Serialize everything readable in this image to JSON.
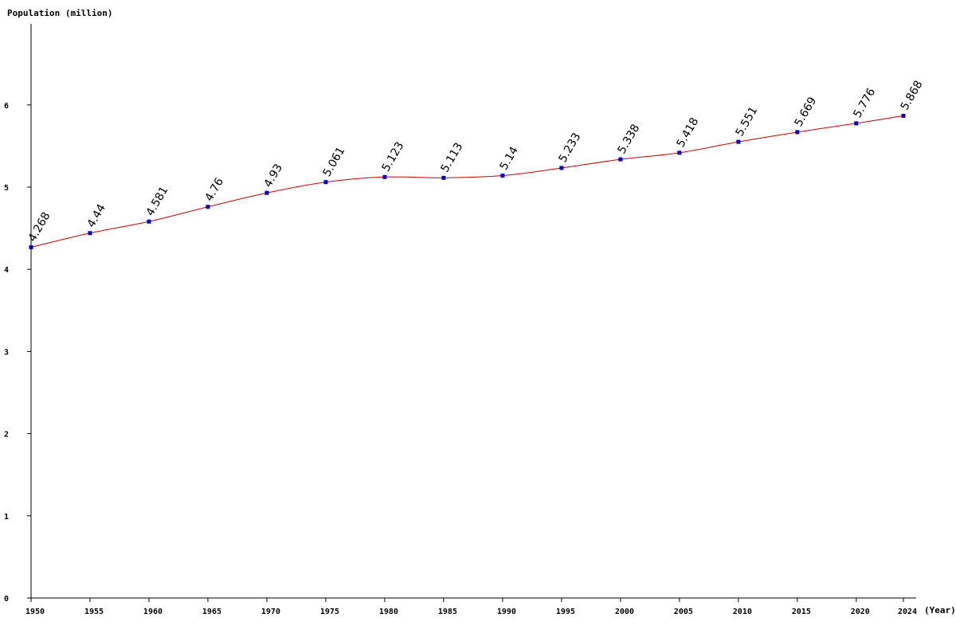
{
  "chart_data": {
    "type": "line",
    "title": "",
    "ylabel": "Population (million)",
    "xlabel": "(Year)",
    "x": [
      1950,
      1955,
      1960,
      1965,
      1970,
      1975,
      1980,
      1985,
      1990,
      1995,
      2000,
      2005,
      2010,
      2015,
      2020,
      2024
    ],
    "values": [
      4.268,
      4.44,
      4.581,
      4.76,
      4.93,
      5.061,
      5.123,
      5.113,
      5.14,
      5.233,
      5.338,
      5.418,
      5.551,
      5.669,
      5.776,
      5.868
    ],
    "data_labels": [
      "4.268",
      "4.44",
      "4.581",
      "4.76",
      "4.93",
      "5.061",
      "5.123",
      "5.113",
      "5.14",
      "5.233",
      "5.338",
      "5.418",
      "5.551",
      "5.669",
      "5.776",
      "5.868"
    ],
    "x_ticks": [
      "1950",
      "1955",
      "1960",
      "1965",
      "1970",
      "1975",
      "1980",
      "1985",
      "1990",
      "1995",
      "2000",
      "2005",
      "2010",
      "2015",
      "2020",
      "2024"
    ],
    "y_ticks": [
      "0",
      "1",
      "2",
      "3",
      "4",
      "5",
      "6"
    ],
    "ylim": [
      0,
      7
    ],
    "xlim": [
      1950,
      2024
    ],
    "grid": false,
    "legend": "none",
    "colors": {
      "line": "#cc0000",
      "marker": "#0000cc",
      "axis": "#000000"
    }
  }
}
